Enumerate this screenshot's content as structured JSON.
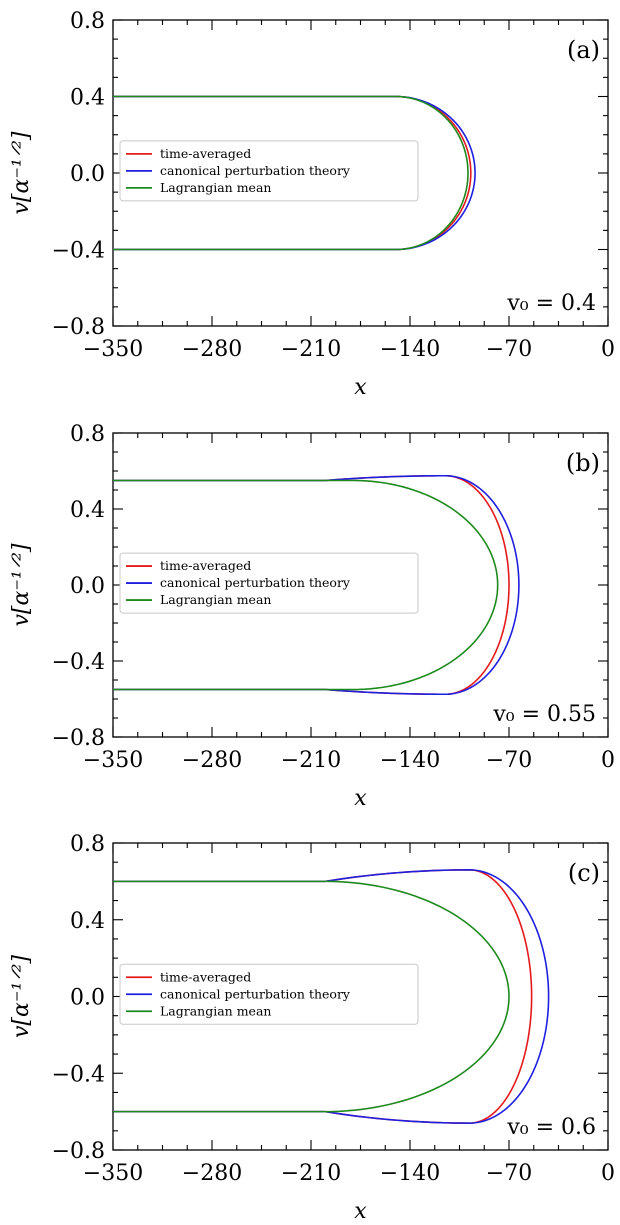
{
  "chart_data": [
    {
      "type": "line",
      "panel_label": "(a)",
      "annotation": "v₀ = 0.4",
      "xlabel": "x",
      "ylabel": "v[α⁻¹ᐟ²]",
      "xlim": [
        -350,
        0
      ],
      "ylim": [
        -0.8,
        0.8
      ],
      "xticks": [
        "−350",
        "−280",
        "−210",
        "−140",
        "−70",
        "0"
      ],
      "yticks": [
        "0.8",
        "0.4",
        "0.0",
        "−0.4",
        "−0.8"
      ],
      "legend_position": "center-left",
      "v0": 0.4,
      "series": [
        {
          "name": "time-averaged",
          "color": "#e41a1c",
          "turn_x": -97,
          "peak_v": 0.4,
          "peak_x": -150
        },
        {
          "name": "canonical perturbation theory",
          "color": "#1f1fe0",
          "turn_x": -94,
          "peak_v": 0.4,
          "peak_x": -150
        },
        {
          "name": "Lagrangian mean",
          "color": "#1e8a1e",
          "turn_x": -99,
          "peak_v": 0.4,
          "peak_x": -150
        }
      ]
    },
    {
      "type": "line",
      "panel_label": "(b)",
      "annotation": "v₀ = 0.55",
      "xlabel": "x",
      "ylabel": "v[α⁻¹ᐟ²]",
      "xlim": [
        -350,
        0
      ],
      "ylim": [
        -0.8,
        0.8
      ],
      "xticks": [
        "−350",
        "−280",
        "−210",
        "−140",
        "−70",
        "0"
      ],
      "yticks": [
        "0.8",
        "0.4",
        "0.0",
        "−0.4",
        "−0.8"
      ],
      "legend_position": "center-left",
      "v0": 0.55,
      "series": [
        {
          "name": "time-averaged",
          "color": "#e41a1c",
          "turn_x": -70,
          "peak_v": 0.575,
          "peak_x": -115
        },
        {
          "name": "canonical perturbation theory",
          "color": "#1f1fe0",
          "turn_x": -63,
          "peak_v": 0.575,
          "peak_x": -115
        },
        {
          "name": "Lagrangian mean",
          "color": "#1e8a1e",
          "turn_x": -78,
          "peak_v": 0.55,
          "peak_x": -180
        }
      ]
    },
    {
      "type": "line",
      "panel_label": "(c)",
      "annotation": "v₀ = 0.6",
      "xlabel": "x",
      "ylabel": "v[α⁻¹ᐟ²]",
      "xlim": [
        -350,
        0
      ],
      "ylim": [
        -0.8,
        0.8
      ],
      "xticks": [
        "−350",
        "−280",
        "−210",
        "−140",
        "−70",
        "0"
      ],
      "yticks": [
        "0.8",
        "0.4",
        "0.0",
        "−0.4",
        "−0.8"
      ],
      "legend_position": "center-left",
      "v0": 0.6,
      "series": [
        {
          "name": "time-averaged",
          "color": "#e41a1c",
          "turn_x": -54,
          "peak_v": 0.66,
          "peak_x": -98
        },
        {
          "name": "canonical perturbation theory",
          "color": "#1f1fe0",
          "turn_x": -42,
          "peak_v": 0.66,
          "peak_x": -98
        },
        {
          "name": "Lagrangian mean",
          "color": "#1e8a1e",
          "turn_x": -70,
          "peak_v": 0.6,
          "peak_x": -200
        }
      ]
    }
  ]
}
